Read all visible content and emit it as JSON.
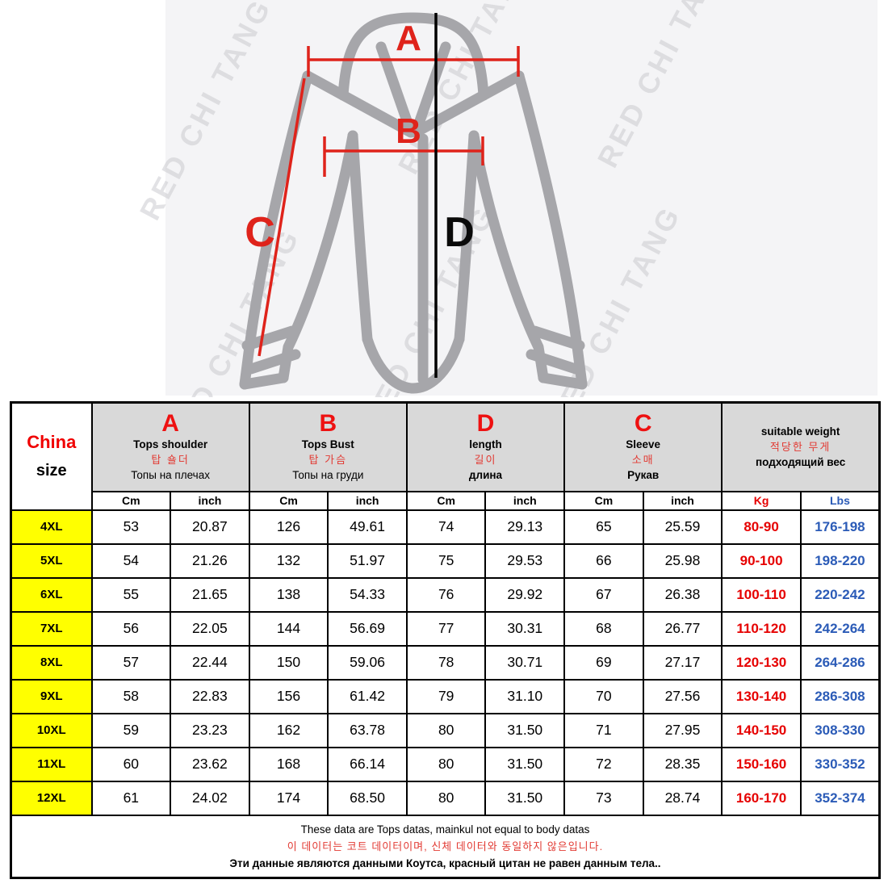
{
  "diagram": {
    "watermark": "RED CHI TANG",
    "labels": {
      "a": "A",
      "b": "B",
      "c": "C",
      "d": "D"
    }
  },
  "colors": {
    "accent_red": "#e60000",
    "accent_blue": "#2b5bb7",
    "size_yellow": "#ffff00",
    "header_gray": "#d9d9d9",
    "shirt_gray": "#a6a6aa"
  },
  "table": {
    "corner": {
      "line1": "China",
      "line2": "size"
    },
    "columns": [
      {
        "letter": "A",
        "en": "Tops shoulder",
        "kr": "탑 숄더",
        "ru": "Топы на плечах",
        "units": [
          "Cm",
          "inch"
        ]
      },
      {
        "letter": "B",
        "en": "Tops Bust",
        "kr": "탑 가슴",
        "ru": "Топы на груди",
        "units": [
          "Cm",
          "inch"
        ]
      },
      {
        "letter": "D",
        "en": "length",
        "kr": "길이",
        "ru": "длина",
        "units": [
          "Cm",
          "inch"
        ]
      },
      {
        "letter": "C",
        "en": "Sleeve",
        "kr": "소매",
        "ru": "Рукав",
        "units": [
          "Cm",
          "inch"
        ]
      },
      {
        "letter": "",
        "en": "suitable weight",
        "kr": "적당한 무게",
        "ru": "подходящий вес",
        "units": [
          "Kg",
          "Lbs"
        ]
      }
    ],
    "rows": [
      {
        "size": "4XL",
        "values": [
          "53",
          "20.87",
          "126",
          "49.61",
          "74",
          "29.13",
          "65",
          "25.59",
          "80-90",
          "176-198"
        ]
      },
      {
        "size": "5XL",
        "values": [
          "54",
          "21.26",
          "132",
          "51.97",
          "75",
          "29.53",
          "66",
          "25.98",
          "90-100",
          "198-220"
        ]
      },
      {
        "size": "6XL",
        "values": [
          "55",
          "21.65",
          "138",
          "54.33",
          "76",
          "29.92",
          "67",
          "26.38",
          "100-110",
          "220-242"
        ]
      },
      {
        "size": "7XL",
        "values": [
          "56",
          "22.05",
          "144",
          "56.69",
          "77",
          "30.31",
          "68",
          "26.77",
          "110-120",
          "242-264"
        ]
      },
      {
        "size": "8XL",
        "values": [
          "57",
          "22.44",
          "150",
          "59.06",
          "78",
          "30.71",
          "69",
          "27.17",
          "120-130",
          "264-286"
        ]
      },
      {
        "size": "9XL",
        "values": [
          "58",
          "22.83",
          "156",
          "61.42",
          "79",
          "31.10",
          "70",
          "27.56",
          "130-140",
          "286-308"
        ]
      },
      {
        "size": "10XL",
        "values": [
          "59",
          "23.23",
          "162",
          "63.78",
          "80",
          "31.50",
          "71",
          "27.95",
          "140-150",
          "308-330"
        ]
      },
      {
        "size": "11XL",
        "values": [
          "60",
          "23.62",
          "168",
          "66.14",
          "80",
          "31.50",
          "72",
          "28.35",
          "150-160",
          "330-352"
        ]
      },
      {
        "size": "12XL",
        "values": [
          "61",
          "24.02",
          "174",
          "68.50",
          "80",
          "31.50",
          "73",
          "28.74",
          "160-170",
          "352-374"
        ]
      }
    ],
    "footer": {
      "en": "These data are Tops datas, mainkul not equal to body datas",
      "kr": "이 데이터는 코트 데이터이며, 신체 데이터와 동일하지 않은입니다.",
      "ru": "Эти данные являются данными Коутса, красный цитан не равен данным тела.."
    }
  }
}
